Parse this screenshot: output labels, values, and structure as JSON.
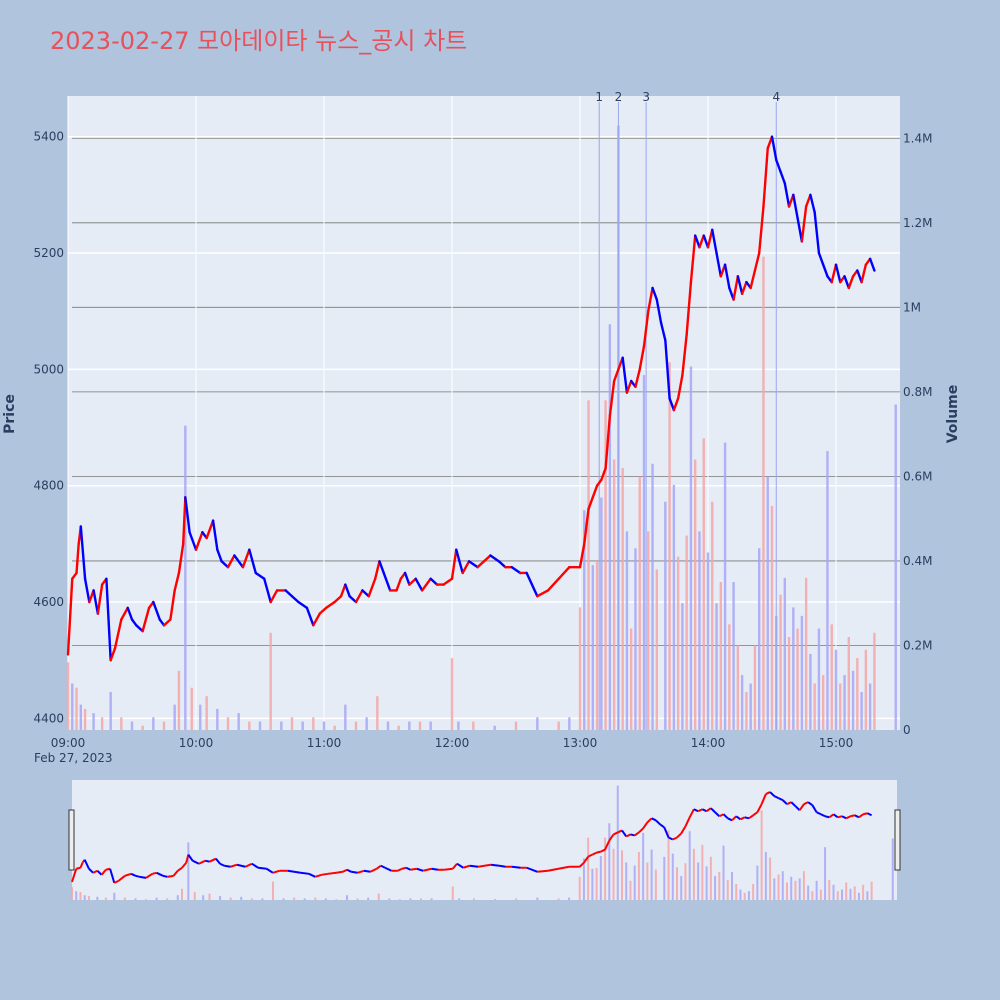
{
  "chart_data": {
    "type": "candlestick",
    "title": "2023-02-27 모아데이타 뉴스_공시 차트",
    "colors": {
      "background": "#b0c4de",
      "plot_bg": "#e5ecf6",
      "title": "#e8505b",
      "up": "#ff0000",
      "down": "#0000ff",
      "up_volume": "#f4a6a6",
      "down_volume": "#a6a6f4",
      "annotation_line": "#9aa6f0",
      "volume_grid": "#777777"
    },
    "x_ticks": [
      "09:00",
      "10:00",
      "11:00",
      "12:00",
      "13:00",
      "14:00",
      "15:00"
    ],
    "x_date_label": "Feb 27, 2023",
    "time_range": [
      "09:00",
      "15:30"
    ],
    "main": {
      "ylabel": "Price",
      "y_ticks": [
        4400,
        4600,
        4800,
        5000,
        5200,
        5400
      ],
      "ylim": [
        4380,
        5470
      ]
    },
    "volume": {
      "ylabel": "Volume",
      "y_ticks": [
        0,
        200000,
        400000,
        600000,
        800000,
        1000000,
        1200000,
        1400000
      ],
      "y_tick_labels": [
        "0",
        "0.2M",
        "0.4M",
        "0.6M",
        "0.8M",
        "1M",
        "1.2M",
        "1.4M"
      ],
      "ylim": [
        0,
        1500000
      ]
    },
    "annotations": [
      {
        "label": "1",
        "time": "13:09"
      },
      {
        "label": "2",
        "time": "13:18"
      },
      {
        "label": "3",
        "time": "13:31"
      },
      {
        "label": "4",
        "time": "14:32"
      }
    ],
    "price_path": [
      [
        "09:00",
        4510
      ],
      [
        "09:02",
        4640
      ],
      [
        "09:04",
        4650
      ],
      [
        "09:05",
        4700
      ],
      [
        "09:06",
        4730
      ],
      [
        "09:08",
        4640
      ],
      [
        "09:10",
        4600
      ],
      [
        "09:12",
        4620
      ],
      [
        "09:14",
        4580
      ],
      [
        "09:16",
        4630
      ],
      [
        "09:18",
        4640
      ],
      [
        "09:20",
        4500
      ],
      [
        "09:22",
        4520
      ],
      [
        "09:25",
        4570
      ],
      [
        "09:28",
        4590
      ],
      [
        "09:30",
        4570
      ],
      [
        "09:32",
        4560
      ],
      [
        "09:35",
        4550
      ],
      [
        "09:38",
        4590
      ],
      [
        "09:40",
        4600
      ],
      [
        "09:43",
        4570
      ],
      [
        "09:45",
        4560
      ],
      [
        "09:48",
        4570
      ],
      [
        "09:50",
        4620
      ],
      [
        "09:52",
        4650
      ],
      [
        "09:54",
        4700
      ],
      [
        "09:55",
        4780
      ],
      [
        "09:57",
        4720
      ],
      [
        "10:00",
        4690
      ],
      [
        "10:03",
        4720
      ],
      [
        "10:05",
        4710
      ],
      [
        "10:08",
        4740
      ],
      [
        "10:10",
        4690
      ],
      [
        "10:12",
        4670
      ],
      [
        "10:15",
        4660
      ],
      [
        "10:18",
        4680
      ],
      [
        "10:22",
        4660
      ],
      [
        "10:25",
        4690
      ],
      [
        "10:28",
        4650
      ],
      [
        "10:32",
        4640
      ],
      [
        "10:35",
        4600
      ],
      [
        "10:38",
        4620
      ],
      [
        "10:42",
        4620
      ],
      [
        "10:45",
        4610
      ],
      [
        "10:48",
        4600
      ],
      [
        "10:52",
        4590
      ],
      [
        "10:55",
        4560
      ],
      [
        "10:58",
        4580
      ],
      [
        "11:01",
        4590
      ],
      [
        "11:05",
        4600
      ],
      [
        "11:08",
        4610
      ],
      [
        "11:10",
        4630
      ],
      [
        "11:12",
        4610
      ],
      [
        "11:15",
        4600
      ],
      [
        "11:18",
        4620
      ],
      [
        "11:21",
        4610
      ],
      [
        "11:24",
        4640
      ],
      [
        "11:26",
        4670
      ],
      [
        "11:28",
        4650
      ],
      [
        "11:31",
        4620
      ],
      [
        "11:34",
        4620
      ],
      [
        "11:36",
        4640
      ],
      [
        "11:38",
        4650
      ],
      [
        "11:40",
        4630
      ],
      [
        "11:43",
        4640
      ],
      [
        "11:46",
        4620
      ],
      [
        "11:50",
        4640
      ],
      [
        "11:53",
        4630
      ],
      [
        "11:56",
        4630
      ],
      [
        "12:00",
        4640
      ],
      [
        "12:02",
        4690
      ],
      [
        "12:05",
        4650
      ],
      [
        "12:08",
        4670
      ],
      [
        "12:12",
        4660
      ],
      [
        "12:15",
        4670
      ],
      [
        "12:18",
        4680
      ],
      [
        "12:22",
        4670
      ],
      [
        "12:25",
        4660
      ],
      [
        "12:28",
        4660
      ],
      [
        "12:32",
        4650
      ],
      [
        "12:35",
        4650
      ],
      [
        "12:40",
        4610
      ],
      [
        "12:45",
        4620
      ],
      [
        "12:50",
        4640
      ],
      [
        "12:55",
        4660
      ],
      [
        "13:00",
        4660
      ],
      [
        "13:02",
        4700
      ],
      [
        "13:04",
        4760
      ],
      [
        "13:06",
        4780
      ],
      [
        "13:08",
        4800
      ],
      [
        "13:10",
        4810
      ],
      [
        "13:12",
        4830
      ],
      [
        "13:14",
        4920
      ],
      [
        "13:16",
        4980
      ],
      [
        "13:18",
        5000
      ],
      [
        "13:20",
        5020
      ],
      [
        "13:22",
        4960
      ],
      [
        "13:24",
        4980
      ],
      [
        "13:26",
        4970
      ],
      [
        "13:28",
        5000
      ],
      [
        "13:30",
        5040
      ],
      [
        "13:32",
        5100
      ],
      [
        "13:34",
        5140
      ],
      [
        "13:36",
        5120
      ],
      [
        "13:38",
        5080
      ],
      [
        "13:40",
        5050
      ],
      [
        "13:42",
        4950
      ],
      [
        "13:44",
        4930
      ],
      [
        "13:46",
        4950
      ],
      [
        "13:48",
        4990
      ],
      [
        "13:50",
        5060
      ],
      [
        "13:52",
        5150
      ],
      [
        "13:54",
        5230
      ],
      [
        "13:56",
        5210
      ],
      [
        "13:58",
        5230
      ],
      [
        "14:00",
        5210
      ],
      [
        "14:02",
        5240
      ],
      [
        "14:04",
        5200
      ],
      [
        "14:06",
        5160
      ],
      [
        "14:08",
        5180
      ],
      [
        "14:10",
        5140
      ],
      [
        "14:12",
        5120
      ],
      [
        "14:14",
        5160
      ],
      [
        "14:16",
        5130
      ],
      [
        "14:18",
        5150
      ],
      [
        "14:20",
        5140
      ],
      [
        "14:22",
        5170
      ],
      [
        "14:24",
        5200
      ],
      [
        "14:26",
        5280
      ],
      [
        "14:28",
        5380
      ],
      [
        "14:30",
        5400
      ],
      [
        "14:32",
        5360
      ],
      [
        "14:34",
        5340
      ],
      [
        "14:36",
        5320
      ],
      [
        "14:38",
        5280
      ],
      [
        "14:40",
        5300
      ],
      [
        "14:42",
        5260
      ],
      [
        "14:44",
        5220
      ],
      [
        "14:46",
        5280
      ],
      [
        "14:48",
        5300
      ],
      [
        "14:50",
        5270
      ],
      [
        "14:52",
        5200
      ],
      [
        "14:54",
        5180
      ],
      [
        "14:56",
        5160
      ],
      [
        "14:58",
        5150
      ],
      [
        "15:00",
        5180
      ],
      [
        "15:02",
        5150
      ],
      [
        "15:04",
        5160
      ],
      [
        "15:06",
        5140
      ],
      [
        "15:08",
        5160
      ],
      [
        "15:10",
        5170
      ],
      [
        "15:12",
        5150
      ],
      [
        "15:14",
        5180
      ],
      [
        "15:16",
        5190
      ],
      [
        "15:18",
        5170
      ]
    ],
    "volume_bars": [
      [
        "09:00",
        160000
      ],
      [
        "09:02",
        110000
      ],
      [
        "09:04",
        100000
      ],
      [
        "09:06",
        60000
      ],
      [
        "09:08",
        50000
      ],
      [
        "09:12",
        40000
      ],
      [
        "09:16",
        30000
      ],
      [
        "09:20",
        90000
      ],
      [
        "09:25",
        30000
      ],
      [
        "09:30",
        20000
      ],
      [
        "09:35",
        10000
      ],
      [
        "09:40",
        30000
      ],
      [
        "09:45",
        20000
      ],
      [
        "09:50",
        60000
      ],
      [
        "09:52",
        140000
      ],
      [
        "09:55",
        720000
      ],
      [
        "09:58",
        100000
      ],
      [
        "10:02",
        60000
      ],
      [
        "10:05",
        80000
      ],
      [
        "10:10",
        50000
      ],
      [
        "10:15",
        30000
      ],
      [
        "10:20",
        40000
      ],
      [
        "10:25",
        20000
      ],
      [
        "10:30",
        20000
      ],
      [
        "10:35",
        230000
      ],
      [
        "10:40",
        20000
      ],
      [
        "10:45",
        30000
      ],
      [
        "10:50",
        20000
      ],
      [
        "10:55",
        30000
      ],
      [
        "11:00",
        20000
      ],
      [
        "11:05",
        10000
      ],
      [
        "11:10",
        60000
      ],
      [
        "11:15",
        20000
      ],
      [
        "11:20",
        30000
      ],
      [
        "11:25",
        80000
      ],
      [
        "11:30",
        20000
      ],
      [
        "11:35",
        10000
      ],
      [
        "11:40",
        20000
      ],
      [
        "11:45",
        20000
      ],
      [
        "11:50",
        20000
      ],
      [
        "12:00",
        170000
      ],
      [
        "12:03",
        20000
      ],
      [
        "12:10",
        20000
      ],
      [
        "12:20",
        10000
      ],
      [
        "12:30",
        20000
      ],
      [
        "12:40",
        30000
      ],
      [
        "12:50",
        20000
      ],
      [
        "12:55",
        30000
      ],
      [
        "13:00",
        290000
      ],
      [
        "13:02",
        520000
      ],
      [
        "13:04",
        780000
      ],
      [
        "13:06",
        390000
      ],
      [
        "13:08",
        400000
      ],
      [
        "13:10",
        550000
      ],
      [
        "13:12",
        780000
      ],
      [
        "13:14",
        960000
      ],
      [
        "13:16",
        640000
      ],
      [
        "13:18",
        1430000
      ],
      [
        "13:20",
        620000
      ],
      [
        "13:22",
        470000
      ],
      [
        "13:24",
        240000
      ],
      [
        "13:26",
        430000
      ],
      [
        "13:28",
        600000
      ],
      [
        "13:30",
        840000
      ],
      [
        "13:32",
        470000
      ],
      [
        "13:34",
        630000
      ],
      [
        "13:36",
        380000
      ],
      [
        "13:40",
        540000
      ],
      [
        "13:42",
        870000
      ],
      [
        "13:44",
        580000
      ],
      [
        "13:46",
        410000
      ],
      [
        "13:48",
        300000
      ],
      [
        "13:50",
        460000
      ],
      [
        "13:52",
        860000
      ],
      [
        "13:54",
        640000
      ],
      [
        "13:56",
        470000
      ],
      [
        "13:58",
        690000
      ],
      [
        "14:00",
        420000
      ],
      [
        "14:02",
        540000
      ],
      [
        "14:04",
        300000
      ],
      [
        "14:06",
        350000
      ],
      [
        "14:08",
        680000
      ],
      [
        "14:10",
        250000
      ],
      [
        "14:12",
        350000
      ],
      [
        "14:14",
        200000
      ],
      [
        "14:16",
        130000
      ],
      [
        "14:18",
        90000
      ],
      [
        "14:20",
        110000
      ],
      [
        "14:22",
        200000
      ],
      [
        "14:24",
        430000
      ],
      [
        "14:26",
        1120000
      ],
      [
        "14:28",
        600000
      ],
      [
        "14:30",
        530000
      ],
      [
        "14:32",
        270000
      ],
      [
        "14:34",
        320000
      ],
      [
        "14:36",
        360000
      ],
      [
        "14:38",
        220000
      ],
      [
        "14:40",
        290000
      ],
      [
        "14:42",
        240000
      ],
      [
        "14:44",
        270000
      ],
      [
        "14:46",
        360000
      ],
      [
        "14:48",
        180000
      ],
      [
        "14:50",
        110000
      ],
      [
        "14:52",
        240000
      ],
      [
        "14:54",
        130000
      ],
      [
        "14:56",
        660000
      ],
      [
        "14:58",
        250000
      ],
      [
        "15:00",
        190000
      ],
      [
        "15:02",
        110000
      ],
      [
        "15:04",
        130000
      ],
      [
        "15:06",
        220000
      ],
      [
        "15:08",
        140000
      ],
      [
        "15:10",
        170000
      ],
      [
        "15:12",
        90000
      ],
      [
        "15:14",
        190000
      ],
      [
        "15:16",
        110000
      ],
      [
        "15:18",
        230000
      ],
      [
        "15:28",
        770000
      ]
    ]
  }
}
